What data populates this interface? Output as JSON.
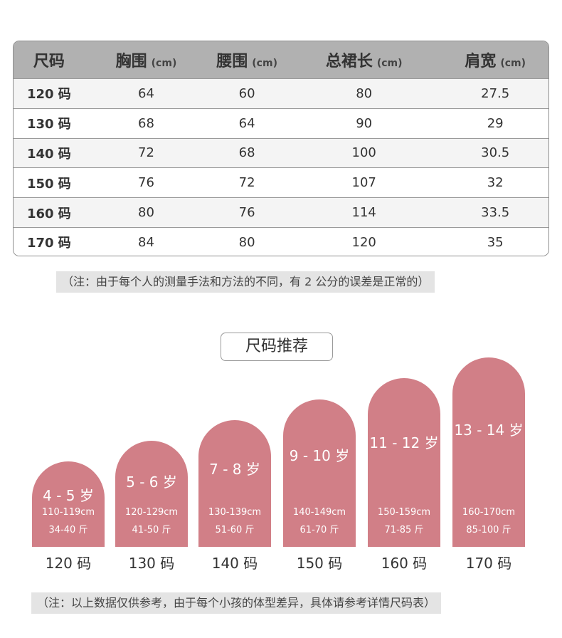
{
  "table": {
    "headers": [
      {
        "label": "尺码",
        "unit": ""
      },
      {
        "label": "胸围",
        "unit": "(cm)"
      },
      {
        "label": "腰围",
        "unit": "(cm)"
      },
      {
        "label": "总裙长",
        "unit": "(cm)"
      },
      {
        "label": "肩宽",
        "unit": "(cm)"
      }
    ],
    "rows": [
      [
        "120 码",
        "64",
        "60",
        "80",
        "27.5"
      ],
      [
        "130 码",
        "68",
        "64",
        "90",
        "29"
      ],
      [
        "140 码",
        "72",
        "68",
        "100",
        "30.5"
      ],
      [
        "150 码",
        "76",
        "72",
        "107",
        "32"
      ],
      [
        "160 码",
        "80",
        "76",
        "114",
        "33.5"
      ],
      [
        "170 码",
        "84",
        "80",
        "120",
        "35"
      ]
    ]
  },
  "note_measure": "（注：由于每个人的测量手法和方法的不同，有 2 公分的误差是正常的）",
  "recommend_title": "尺码推荐",
  "recommend": [
    {
      "age": "4 - 5 岁",
      "height": "110-119cm",
      "weight": "34-40 斤",
      "size": "120 码"
    },
    {
      "age": "5 - 6 岁",
      "height": "120-129cm",
      "weight": "41-50 斤",
      "size": "130 码"
    },
    {
      "age": "7 - 8 岁",
      "height": "130-139cm",
      "weight": "51-60 斤",
      "size": "140 码"
    },
    {
      "age": "9 - 10 岁",
      "height": "140-149cm",
      "weight": "61-70 斤",
      "size": "150 码"
    },
    {
      "age": "11 - 12 岁",
      "height": "150-159cm",
      "weight": "71-85 斤",
      "size": "160 码"
    },
    {
      "age": "13 - 14 岁",
      "height": "160-170cm",
      "weight": "85-100 斤",
      "size": "170 码"
    }
  ],
  "note_reference": "（注：以上数据仅供参考，由于每个小孩的体型差异，具体请参考详情尺码表）",
  "colors": {
    "arch": "#d17f87",
    "header_bg": "#b1b1b1",
    "note_bg": "#e4e4e4"
  }
}
